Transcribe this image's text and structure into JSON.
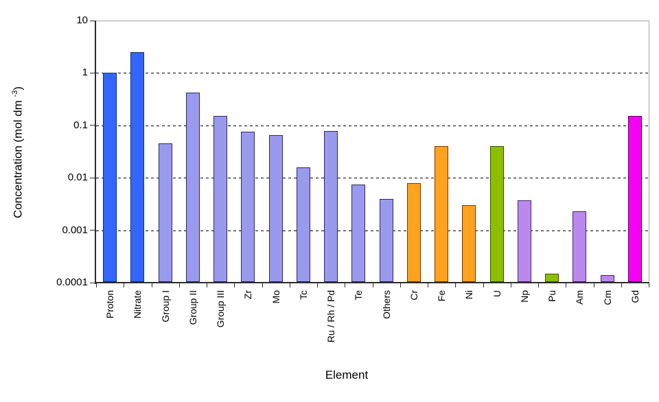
{
  "chart_data": {
    "type": "bar",
    "title": "",
    "xlabel": "Element",
    "ylabel": "Concentration (mol dm -3)",
    "ylabel_parts": {
      "main": "Concentration (mol dm ",
      "sup": "-3",
      "close": ")"
    },
    "y_scale": "log",
    "ylim": [
      0.0001,
      10
    ],
    "y_ticks": [
      10,
      1,
      0.1,
      0.01,
      0.001,
      0.0001
    ],
    "y_tick_labels": [
      "10",
      "1",
      "0.1",
      "0.01",
      "0.001",
      "0.0001"
    ],
    "y_gridlines": [
      1,
      0.1,
      0.01,
      0.001
    ],
    "grid": "horizontal-dashed-per-decade",
    "legend": "none",
    "categories": [
      "Proton",
      "Nitrate",
      "Group I",
      "Group II",
      "Group III",
      "Zr",
      "Mo",
      "Tc",
      "Ru / Rh / Pd",
      "Te",
      "Others",
      "Cr",
      "Fe",
      "Ni",
      "U",
      "Np",
      "Pu",
      "Am",
      "Cm",
      "Gd"
    ],
    "values": [
      1.0,
      2.5,
      0.045,
      0.42,
      0.15,
      0.076,
      0.066,
      0.016,
      0.078,
      0.0075,
      0.004,
      0.008,
      0.04,
      0.003,
      0.04,
      0.0037,
      0.00015,
      0.0023,
      0.00014,
      0.15
    ],
    "bar_fills": [
      "#3366ff",
      "#3366ff",
      "#9999ee",
      "#9999ee",
      "#9999ee",
      "#9999ee",
      "#9999ee",
      "#9999ee",
      "#9999ee",
      "#9999ee",
      "#9999ee",
      "#ffa21f",
      "#ffa21f",
      "#ffa21f",
      "#8cbf00",
      "#bb88ee",
      "#8cbf00",
      "#bb88ee",
      "#bb88ee",
      "#f500f5"
    ],
    "bar_borders": [
      "#1a2a6e",
      "#1a2a6e",
      "#2b2b55",
      "#2b2b55",
      "#2b2b55",
      "#2b2b55",
      "#2b2b55",
      "#2b2b55",
      "#2b2b55",
      "#2b2b55",
      "#2b2b55",
      "#803300",
      "#803300",
      "#803300",
      "#3a4d00",
      "#45266e",
      "#3a4d00",
      "#45266e",
      "#45266e",
      "#5e005e"
    ]
  },
  "style": {
    "background": "#ffffff",
    "plot_border_color": "#a6a6a6",
    "axis_color": "#2b2b2b",
    "grid_color": "#000000",
    "text_color": "#000000"
  }
}
